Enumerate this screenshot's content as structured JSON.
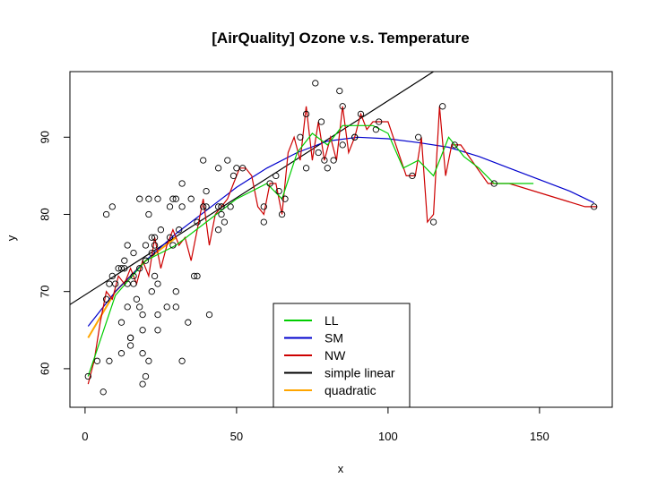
{
  "chart_data": {
    "type": "scatter",
    "title": "[AirQuality] Ozone v.s. Temperature",
    "xlabel": "x",
    "ylabel": "y",
    "xlim": [
      -5,
      174
    ],
    "ylim": [
      55,
      98.5
    ],
    "xticks": [
      0,
      50,
      100,
      150
    ],
    "yticks": [
      60,
      70,
      80,
      90
    ],
    "grid": false,
    "legend_placement": "bottom-center",
    "points": [
      [
        1,
        59
      ],
      [
        4,
        61
      ],
      [
        6,
        57
      ],
      [
        7,
        80
      ],
      [
        7,
        69
      ],
      [
        8,
        61
      ],
      [
        8,
        71
      ],
      [
        9,
        81
      ],
      [
        9,
        72
      ],
      [
        10,
        71
      ],
      [
        11,
        73
      ],
      [
        12,
        62
      ],
      [
        12,
        73
      ],
      [
        12,
        66
      ],
      [
        13,
        74
      ],
      [
        13,
        73
      ],
      [
        14,
        71
      ],
      [
        14,
        76
      ],
      [
        14,
        68
      ],
      [
        15,
        63
      ],
      [
        15,
        64
      ],
      [
        15,
        64
      ],
      [
        16,
        75
      ],
      [
        16,
        71
      ],
      [
        16,
        72
      ],
      [
        17,
        69
      ],
      [
        18,
        82
      ],
      [
        18,
        73
      ],
      [
        18,
        68
      ],
      [
        19,
        65
      ],
      [
        19,
        58
      ],
      [
        19,
        62
      ],
      [
        19,
        67
      ],
      [
        20,
        76
      ],
      [
        20,
        59
      ],
      [
        20,
        74
      ],
      [
        21,
        80
      ],
      [
        21,
        82
      ],
      [
        21,
        61
      ],
      [
        22,
        70
      ],
      [
        22,
        77
      ],
      [
        22,
        75
      ],
      [
        23,
        77
      ],
      [
        23,
        72
      ],
      [
        23,
        76
      ],
      [
        24,
        82
      ],
      [
        24,
        71
      ],
      [
        24,
        65
      ],
      [
        24,
        67
      ],
      [
        25,
        78
      ],
      [
        27,
        68
      ],
      [
        28,
        81
      ],
      [
        28,
        77
      ],
      [
        29,
        82
      ],
      [
        29,
        76
      ],
      [
        30,
        82
      ],
      [
        30,
        70
      ],
      [
        30,
        68
      ],
      [
        31,
        78
      ],
      [
        32,
        84
      ],
      [
        32,
        61
      ],
      [
        32,
        81
      ],
      [
        34,
        66
      ],
      [
        35,
        82
      ],
      [
        36,
        72
      ],
      [
        37,
        72
      ],
      [
        37,
        79
      ],
      [
        39,
        87
      ],
      [
        39,
        81
      ],
      [
        40,
        83
      ],
      [
        40,
        81
      ],
      [
        41,
        67
      ],
      [
        44,
        86
      ],
      [
        44,
        81
      ],
      [
        44,
        78
      ],
      [
        45,
        81
      ],
      [
        45,
        80
      ],
      [
        45,
        81
      ],
      [
        46,
        79
      ],
      [
        47,
        87
      ],
      [
        48,
        81
      ],
      [
        49,
        85
      ],
      [
        50,
        86
      ],
      [
        52,
        86
      ],
      [
        59,
        81
      ],
      [
        59,
        79
      ],
      [
        61,
        84
      ],
      [
        63,
        85
      ],
      [
        64,
        83
      ],
      [
        65,
        80
      ],
      [
        66,
        82
      ],
      [
        71,
        90
      ],
      [
        73,
        86
      ],
      [
        73,
        93
      ],
      [
        76,
        97
      ],
      [
        77,
        88
      ],
      [
        78,
        92
      ],
      [
        79,
        87
      ],
      [
        80,
        86
      ],
      [
        82,
        87
      ],
      [
        84,
        96
      ],
      [
        85,
        89
      ],
      [
        85,
        94
      ],
      [
        89,
        90
      ],
      [
        89,
        90
      ],
      [
        91,
        93
      ],
      [
        96,
        91
      ],
      [
        97,
        92
      ],
      [
        108,
        85
      ],
      [
        110,
        90
      ],
      [
        115,
        79
      ],
      [
        118,
        94
      ],
      [
        122,
        89
      ],
      [
        135,
        84
      ],
      [
        168,
        81
      ]
    ],
    "series": [
      {
        "name": "LL",
        "color": "#00cd00",
        "x": [
          1,
          10,
          20,
          30,
          40,
          50,
          60,
          65,
          70,
          75,
          80,
          85,
          90,
          95,
          100,
          105,
          110,
          115,
          120,
          125,
          130,
          135,
          140,
          148
        ],
        "y": [
          59,
          69.5,
          74,
          76,
          79,
          82,
          84,
          82,
          88,
          90.5,
          89,
          91.5,
          91.5,
          91.5,
          90.5,
          86,
          87,
          85,
          90,
          87.5,
          86,
          84,
          84,
          84
        ]
      },
      {
        "name": "SM",
        "color": "#0000cd",
        "x": [
          1,
          10,
          20,
          30,
          40,
          50,
          60,
          70,
          80,
          90,
          100,
          110,
          120,
          130,
          140,
          150,
          160,
          168
        ],
        "y": [
          65.5,
          70,
          74,
          77.5,
          80.5,
          83.5,
          86,
          88,
          89.5,
          90,
          89.8,
          89.3,
          88.7,
          87.5,
          86,
          84.5,
          83,
          81.5
        ]
      },
      {
        "name": "NW",
        "color": "#cd0000",
        "x": [
          1,
          3,
          5,
          7,
          9,
          11,
          13,
          15,
          17,
          19,
          21,
          23,
          25,
          27,
          29,
          31,
          33,
          35,
          37,
          39,
          41,
          43,
          45,
          47,
          49,
          51,
          53,
          55,
          57,
          59,
          61,
          63,
          65,
          67,
          69,
          71,
          73,
          75,
          77,
          79,
          81,
          83,
          85,
          87,
          89,
          91,
          93,
          95,
          97,
          100,
          106,
          109,
          111,
          113,
          115,
          117,
          119,
          121,
          124,
          133,
          140,
          165,
          169
        ],
        "y": [
          58,
          61,
          66,
          70,
          69,
          72,
          71,
          73,
          71,
          74,
          72,
          77,
          73,
          76,
          78,
          76,
          77,
          74,
          78,
          82,
          76,
          80,
          81,
          82,
          84,
          86,
          86,
          85,
          81,
          80,
          84,
          84,
          80,
          88,
          90,
          87,
          94,
          87,
          92,
          87,
          90,
          87,
          94,
          88,
          90,
          93,
          91,
          92,
          92,
          92,
          85,
          85,
          90,
          79,
          80,
          94,
          85,
          89,
          89,
          84,
          84,
          81,
          81
        ]
      },
      {
        "name": "simple linear",
        "color": "#000000",
        "x": [
          -5,
          115
        ],
        "y": [
          68.3,
          98.5
        ]
      },
      {
        "name": "quadratic",
        "color": "#ffa500",
        "x": [
          1,
          10,
          20,
          30
        ],
        "y": [
          64,
          70,
          74,
          77
        ]
      }
    ],
    "legend": [
      "LL",
      "SM",
      "NW",
      "simple linear",
      "quadratic"
    ]
  }
}
